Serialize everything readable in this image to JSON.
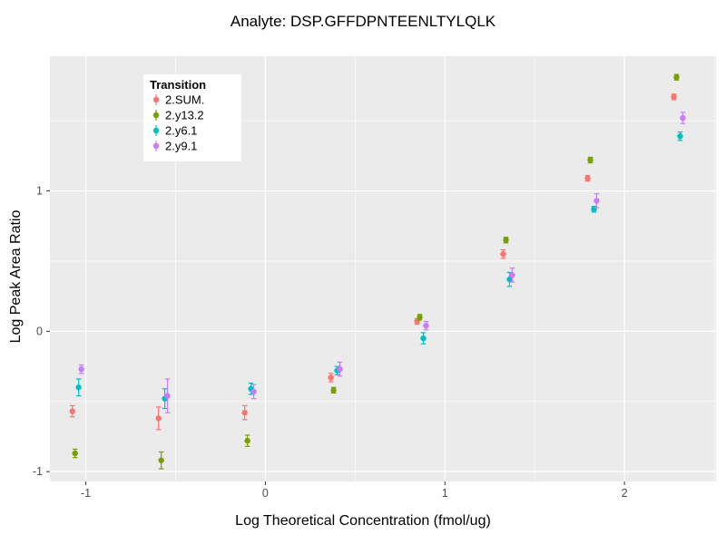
{
  "chart_data": {
    "type": "scatter",
    "title": "Analyte: DSP.GFFDPNTEENLTYLQLK",
    "xlabel": "Log Theoretical Concentration (fmol/ug)",
    "ylabel": "Log Peak Area Ratio",
    "xlim": [
      -1.2,
      2.51
    ],
    "ylim": [
      -1.07,
      1.96
    ],
    "xticks": [
      -1,
      0,
      1,
      2
    ],
    "yticks": [
      -1,
      0,
      1
    ],
    "x_minor": [
      -0.5,
      0.5,
      1.5,
      2.5
    ],
    "y_minor": [
      -0.5,
      0.5,
      1.5
    ],
    "grid": true,
    "panel_color": "#EBEBEB",
    "grid_color": "#FFFFFF",
    "tick_label_color": "#4D4D4D",
    "legend_title": "Transition",
    "legend_position": "inside-top-left",
    "x": [
      -1.05,
      -0.57,
      -0.09,
      0.39,
      0.87,
      1.35,
      1.82,
      2.3
    ],
    "series": [
      {
        "name": "2.SUM.",
        "color": "#F8766D",
        "dodge": -0.025,
        "y": [
          -0.57,
          -0.62,
          -0.58,
          -0.33,
          0.07,
          0.55,
          1.09,
          1.67
        ],
        "err": [
          0.04,
          0.08,
          0.05,
          0.03,
          0.02,
          0.03,
          0.02,
          0.02
        ]
      },
      {
        "name": "2.y13.2",
        "color": "#74A000",
        "dodge": -0.01,
        "y": [
          -0.87,
          -0.92,
          -0.78,
          -0.42,
          0.1,
          0.65,
          1.22,
          1.81
        ],
        "err": [
          0.03,
          0.06,
          0.04,
          0.02,
          0.02,
          0.02,
          0.02,
          0.02
        ]
      },
      {
        "name": "2.y6.1",
        "color": "#00BFC4",
        "dodge": 0.01,
        "y": [
          -0.4,
          -0.48,
          -0.41,
          -0.28,
          -0.05,
          0.37,
          0.87,
          1.39
        ],
        "err": [
          0.06,
          0.07,
          0.04,
          0.03,
          0.04,
          0.05,
          0.02,
          0.03
        ]
      },
      {
        "name": "2.y9.1",
        "color": "#C77CFF",
        "dodge": 0.025,
        "y": [
          -0.27,
          -0.46,
          -0.43,
          -0.27,
          0.04,
          0.4,
          0.93,
          1.52
        ],
        "err": [
          0.03,
          0.12,
          0.05,
          0.05,
          0.03,
          0.05,
          0.05,
          0.04
        ]
      }
    ]
  }
}
